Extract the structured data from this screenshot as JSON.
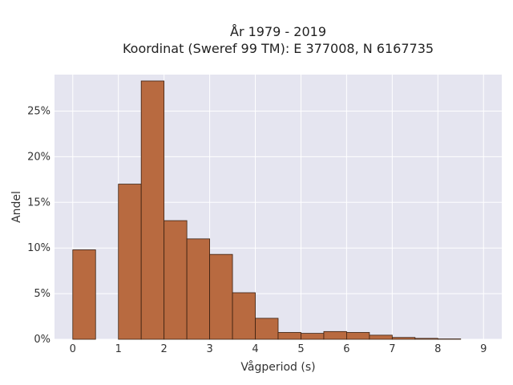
{
  "chart_data": {
    "type": "bar",
    "title_line1": "År 1979 - 2019",
    "title_line2": "Koordinat (Sweref 99 TM): E 377008, N 6167735",
    "xlabel": "Vågperiod (s)",
    "ylabel": "Andel",
    "xlim": [
      -0.4,
      9.4
    ],
    "ylim": [
      0,
      0.29
    ],
    "xticks": [
      0,
      1,
      2,
      3,
      4,
      5,
      6,
      7,
      8,
      9
    ],
    "yticks": [
      0,
      0.05,
      0.1,
      0.15,
      0.2,
      0.25
    ],
    "ytick_labels": [
      "0%",
      "5%",
      "10%",
      "15%",
      "20%",
      "25%"
    ],
    "grid": true,
    "bar_color": "#b86a40",
    "bar_edge": "#3a2010",
    "background": "#e5e5f0",
    "bins": [
      {
        "x0": 0.0,
        "x1": 0.5,
        "value": 0.098
      },
      {
        "x0": 1.0,
        "x1": 1.5,
        "value": 0.17
      },
      {
        "x0": 1.5,
        "x1": 2.0,
        "value": 0.283
      },
      {
        "x0": 2.0,
        "x1": 2.5,
        "value": 0.13
      },
      {
        "x0": 2.5,
        "x1": 3.0,
        "value": 0.11
      },
      {
        "x0": 3.0,
        "x1": 3.5,
        "value": 0.093
      },
      {
        "x0": 3.5,
        "x1": 4.0,
        "value": 0.051
      },
      {
        "x0": 4.0,
        "x1": 4.5,
        "value": 0.023
      },
      {
        "x0": 4.5,
        "x1": 5.0,
        "value": 0.0075
      },
      {
        "x0": 5.0,
        "x1": 5.5,
        "value": 0.0065
      },
      {
        "x0": 5.5,
        "x1": 6.0,
        "value": 0.0085
      },
      {
        "x0": 6.0,
        "x1": 6.5,
        "value": 0.0075
      },
      {
        "x0": 6.5,
        "x1": 7.0,
        "value": 0.0045
      },
      {
        "x0": 7.0,
        "x1": 7.5,
        "value": 0.002
      },
      {
        "x0": 7.5,
        "x1": 8.0,
        "value": 0.001
      },
      {
        "x0": 8.0,
        "x1": 8.5,
        "value": 0.0004
      }
    ]
  }
}
